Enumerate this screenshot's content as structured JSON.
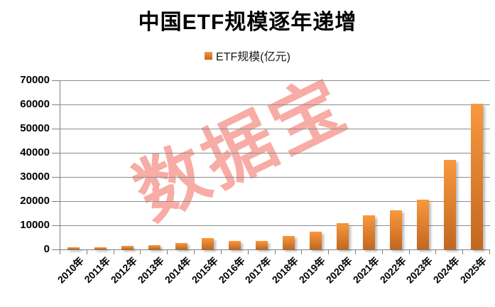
{
  "watermark": {
    "text": "数据宝",
    "color": "#F7ACA5"
  },
  "chart_data": {
    "type": "bar",
    "title": "中国ETF规模逐年递增",
    "series_name": "ETF规模(亿元)",
    "categories": [
      "2010年",
      "2011年",
      "2012年",
      "2013年",
      "2014年",
      "2015年",
      "2016年",
      "2017年",
      "2018年",
      "2019年",
      "2020年",
      "2021年",
      "2022年",
      "2023年",
      "2024年",
      "2025年"
    ],
    "values": [
      900,
      850,
      1500,
      1870,
      2600,
      4600,
      3500,
      3600,
      5700,
      7400,
      10900,
      14100,
      16200,
      20600,
      37200,
      60300
    ],
    "xlabel": "",
    "ylabel": "",
    "ylim": [
      0,
      70000
    ],
    "yticks": [
      0,
      10000,
      20000,
      30000,
      40000,
      50000,
      60000,
      70000
    ],
    "grid": "horizontal",
    "legend_position": "top",
    "bar_color_top": "#F9983F",
    "bar_color_bottom": "#C2671F",
    "grid_color": "#8c8c8c",
    "axis_color": "#7f7f7f"
  }
}
